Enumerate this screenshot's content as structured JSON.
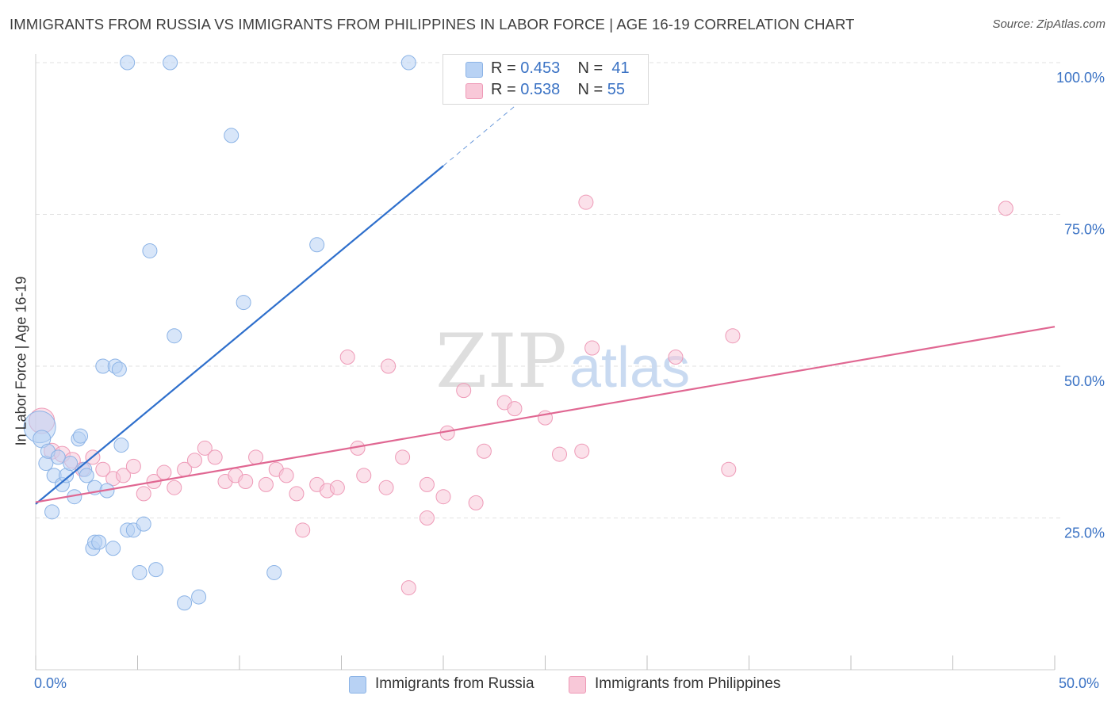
{
  "header": {
    "title": "IMMIGRANTS FROM RUSSIA VS IMMIGRANTS FROM PHILIPPINES IN LABOR FORCE | AGE 16-19 CORRELATION CHART",
    "source": "Source: ZipAtlas.com"
  },
  "watermark": {
    "zip": "ZIP",
    "atlas": "atlas"
  },
  "legend": {
    "russia": {
      "r_label": "R =",
      "r_value": "0.453",
      "n_label": "N =",
      "n_value": "41"
    },
    "philippines": {
      "r_label": "R =",
      "r_value": "0.538",
      "n_label": "N =",
      "n_value": "55"
    }
  },
  "colors": {
    "russia_fill": "#b8d2f4",
    "russia_stroke": "#8bb3e6",
    "russia_line": "#2e6fcc",
    "philippines_fill": "#f8c8d8",
    "philippines_stroke": "#ee9ab7",
    "philippines_line": "#e06792",
    "tick_label": "#3a72c4",
    "grid": "#e2e2e2"
  },
  "chart_data": {
    "type": "scatter",
    "title": "IMMIGRANTS FROM RUSSIA VS IMMIGRANTS FROM PHILIPPINES IN LABOR FORCE | AGE 16-19 CORRELATION CHART",
    "xlabel": "",
    "ylabel": "In Labor Force | Age 16-19",
    "xlim": [
      0,
      50
    ],
    "ylim": [
      0,
      100
    ],
    "x_tick_labels": [
      "0.0%",
      "50.0%"
    ],
    "y_ticks": [
      25,
      50,
      75,
      100
    ],
    "y_tick_labels": [
      "25.0%",
      "50.0%",
      "75.0%",
      "100.0%"
    ],
    "grid": true,
    "legend_position": "top-center",
    "series": [
      {
        "name": "Immigrants from Russia",
        "r": 0.453,
        "n": 41,
        "trend": {
          "x0": 0,
          "y0": 27.3,
          "x1": 20.0,
          "y1": 83.0,
          "dash_to_x": 24.0,
          "dash_to_y": 94.2
        },
        "points": [
          [
            0.2,
            40.0,
            20
          ],
          [
            0.3,
            38.0,
            11
          ],
          [
            0.5,
            34.0,
            9
          ],
          [
            0.6,
            36.0,
            9
          ],
          [
            0.8,
            26.0,
            9
          ],
          [
            0.9,
            32.0,
            9
          ],
          [
            1.1,
            35.0,
            9
          ],
          [
            1.3,
            30.5,
            9
          ],
          [
            1.5,
            32.0,
            9
          ],
          [
            1.7,
            34.0,
            9
          ],
          [
            1.9,
            28.5,
            9
          ],
          [
            2.1,
            38.0,
            9
          ],
          [
            2.2,
            38.5,
            9
          ],
          [
            2.4,
            33.0,
            9
          ],
          [
            2.5,
            32.0,
            9
          ],
          [
            2.9,
            30.0,
            9
          ],
          [
            2.8,
            20.0,
            9
          ],
          [
            2.9,
            21.0,
            9
          ],
          [
            3.1,
            21.0,
            9
          ],
          [
            3.5,
            29.5,
            9
          ],
          [
            3.8,
            20.0,
            9
          ],
          [
            3.3,
            50.0,
            9
          ],
          [
            3.9,
            50.0,
            9
          ],
          [
            4.1,
            49.5,
            9
          ],
          [
            4.2,
            37.0,
            9
          ],
          [
            4.5,
            23.0,
            9
          ],
          [
            4.8,
            23.0,
            9
          ],
          [
            5.1,
            16.0,
            9
          ],
          [
            5.3,
            24.0,
            9
          ],
          [
            5.6,
            69.0,
            9
          ],
          [
            5.9,
            16.5,
            9
          ],
          [
            6.8,
            55.0,
            9
          ],
          [
            7.3,
            11.0,
            9
          ],
          [
            8.0,
            12.0,
            9
          ],
          [
            9.6,
            88.0,
            9
          ],
          [
            10.2,
            60.5,
            9
          ],
          [
            11.7,
            16.0,
            9
          ],
          [
            13.8,
            70.0,
            9
          ],
          [
            4.5,
            100.0,
            9
          ],
          [
            6.6,
            100.0,
            9
          ],
          [
            18.3,
            100.0,
            9
          ]
        ]
      },
      {
        "name": "Immigrants from Philippines",
        "r": 0.538,
        "n": 55,
        "trend": {
          "x0": 0,
          "y0": 27.6,
          "x1": 50.0,
          "y1": 56.5
        },
        "points": [
          [
            0.3,
            41.0,
            16
          ],
          [
            0.8,
            36.0,
            10
          ],
          [
            1.3,
            35.5,
            10
          ],
          [
            1.8,
            34.5,
            10
          ],
          [
            2.3,
            33.0,
            9
          ],
          [
            2.8,
            35.0,
            9
          ],
          [
            3.3,
            33.0,
            9
          ],
          [
            3.8,
            31.5,
            9
          ],
          [
            4.3,
            32.0,
            9
          ],
          [
            4.8,
            33.5,
            9
          ],
          [
            5.3,
            29.0,
            9
          ],
          [
            5.8,
            31.0,
            9
          ],
          [
            6.3,
            32.5,
            9
          ],
          [
            6.8,
            30.0,
            9
          ],
          [
            7.3,
            33.0,
            9
          ],
          [
            7.8,
            34.5,
            9
          ],
          [
            8.3,
            36.5,
            9
          ],
          [
            8.8,
            35.0,
            9
          ],
          [
            9.3,
            31.0,
            9
          ],
          [
            9.8,
            32.0,
            9
          ],
          [
            10.3,
            31.0,
            9
          ],
          [
            10.8,
            35.0,
            9
          ],
          [
            11.3,
            30.5,
            9
          ],
          [
            11.8,
            33.0,
            9
          ],
          [
            12.3,
            32.0,
            9
          ],
          [
            12.8,
            29.0,
            9
          ],
          [
            13.1,
            23.0,
            9
          ],
          [
            13.8,
            30.5,
            9
          ],
          [
            14.3,
            29.5,
            9
          ],
          [
            14.8,
            30.0,
            9
          ],
          [
            15.3,
            51.5,
            9
          ],
          [
            15.8,
            36.5,
            9
          ],
          [
            16.1,
            32.0,
            9
          ],
          [
            17.2,
            30.0,
            9
          ],
          [
            17.3,
            50.0,
            9
          ],
          [
            18.0,
            35.0,
            9
          ],
          [
            18.3,
            13.5,
            9
          ],
          [
            19.2,
            25.0,
            9
          ],
          [
            19.2,
            30.5,
            9
          ],
          [
            20.0,
            28.5,
            9
          ],
          [
            20.2,
            39.0,
            9
          ],
          [
            21.0,
            46.0,
            9
          ],
          [
            21.6,
            27.5,
            9
          ],
          [
            22.0,
            36.0,
            9
          ],
          [
            23.0,
            44.0,
            9
          ],
          [
            23.5,
            43.0,
            9
          ],
          [
            25.0,
            41.5,
            9
          ],
          [
            25.7,
            35.5,
            9
          ],
          [
            26.8,
            36.0,
            9
          ],
          [
            27.3,
            53.0,
            9
          ],
          [
            27.0,
            77.0,
            9
          ],
          [
            31.4,
            51.5,
            9
          ],
          [
            34.0,
            33.0,
            9
          ],
          [
            34.2,
            55.0,
            9
          ],
          [
            47.6,
            76.0,
            9
          ]
        ]
      }
    ]
  },
  "axes": {
    "x_left_label": "0.0%",
    "x_right_label": "50.0%"
  },
  "bottom_legend": {
    "russia_label": "Immigrants from Russia",
    "philippines_label": "Immigrants from Philippines"
  }
}
